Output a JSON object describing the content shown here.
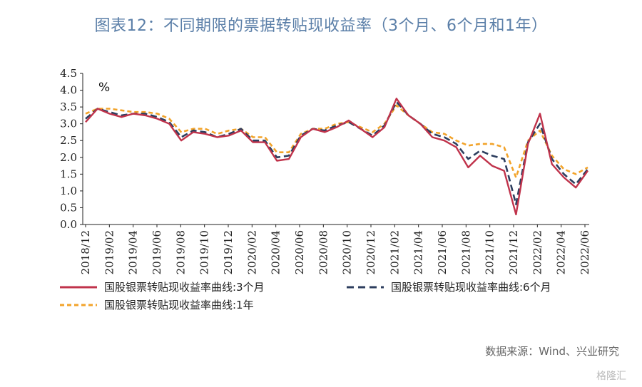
{
  "title": "图表12：不同期限的票据转贴现收益率（3个月、6个月和1年）",
  "source": "数据来源：Wind、兴业研究",
  "watermark": "格隆汇",
  "chart_data": {
    "type": "line",
    "title": "图表12：不同期限的票据转贴现收益率（3个月、6个月和1年）",
    "ylabel": "%",
    "ylim": [
      0,
      4.5
    ],
    "yticks": [
      0.0,
      0.5,
      1.0,
      1.5,
      2.0,
      2.5,
      3.0,
      3.5,
      4.0,
      4.5
    ],
    "ytick_labels": [
      "0.0",
      "0.5",
      "1.0",
      "1.5",
      "2.0",
      "2.5",
      "3.0",
      "3.5",
      "4.0",
      "4.5"
    ],
    "xtick_labels": [
      "2018/12",
      "2019/02",
      "2019/04",
      "2019/06",
      "2019/08",
      "2019/10",
      "2019/12",
      "2020/02",
      "2020/04",
      "2020/06",
      "2020/08",
      "2020/10",
      "2020/12",
      "2021/02",
      "2021/04",
      "2021/06",
      "2021/08",
      "2021/10",
      "2021/12",
      "2022/02",
      "2022/04",
      "2022/06"
    ],
    "x": [
      "2018/12",
      "2019/01",
      "2019/02",
      "2019/03",
      "2019/04",
      "2019/05",
      "2019/06",
      "2019/07",
      "2019/08",
      "2019/09",
      "2019/10",
      "2019/11",
      "2019/12",
      "2020/01",
      "2020/02",
      "2020/03",
      "2020/04",
      "2020/05",
      "2020/06",
      "2020/07",
      "2020/08",
      "2020/09",
      "2020/10",
      "2020/11",
      "2020/12",
      "2021/01",
      "2021/02",
      "2021/03",
      "2021/04",
      "2021/05",
      "2021/06",
      "2021/07",
      "2021/08",
      "2021/09",
      "2021/10",
      "2021/11",
      "2021/12",
      "2022/01",
      "2022/02",
      "2022/03",
      "2022/04",
      "2022/05",
      "2022/06"
    ],
    "grid": false,
    "legend_position": "bottom",
    "series": [
      {
        "name": "国股银票转贴现收益率曲线:3个月",
        "color": "#c0334b",
        "style": "solid",
        "values": [
          3.05,
          3.45,
          3.3,
          3.2,
          3.3,
          3.25,
          3.15,
          3.0,
          2.5,
          2.75,
          2.7,
          2.6,
          2.65,
          2.8,
          2.45,
          2.45,
          1.9,
          1.95,
          2.6,
          2.85,
          2.75,
          2.9,
          3.1,
          2.85,
          2.6,
          2.9,
          3.75,
          3.25,
          3.0,
          2.6,
          2.5,
          2.3,
          1.7,
          2.05,
          1.75,
          1.6,
          0.3,
          2.4,
          3.3,
          1.8,
          1.4,
          1.1,
          1.6
        ]
      },
      {
        "name": "国股银票转贴现收益率曲线:6个月",
        "color": "#2d3e5e",
        "style": "dashed",
        "values": [
          3.15,
          3.45,
          3.35,
          3.25,
          3.3,
          3.3,
          3.2,
          3.05,
          2.6,
          2.8,
          2.75,
          2.6,
          2.7,
          2.85,
          2.5,
          2.5,
          2.0,
          2.05,
          2.65,
          2.85,
          2.8,
          2.95,
          3.05,
          2.85,
          2.65,
          2.95,
          3.65,
          3.25,
          3.0,
          2.7,
          2.6,
          2.4,
          1.95,
          2.2,
          2.05,
          1.95,
          0.6,
          2.45,
          3.0,
          1.95,
          1.5,
          1.2,
          1.65
        ]
      },
      {
        "name": "国股银票转贴现收益率曲线:1年",
        "color": "#f2a32a",
        "style": "dashed",
        "values": [
          3.3,
          3.45,
          3.45,
          3.4,
          3.35,
          3.35,
          3.3,
          3.15,
          2.75,
          2.85,
          2.85,
          2.7,
          2.8,
          2.85,
          2.6,
          2.6,
          2.15,
          2.15,
          2.7,
          2.85,
          2.85,
          3.0,
          3.05,
          2.9,
          2.75,
          3.0,
          3.55,
          3.25,
          3.0,
          2.75,
          2.7,
          2.5,
          2.35,
          2.4,
          2.4,
          2.3,
          1.4,
          2.5,
          2.8,
          2.05,
          1.65,
          1.5,
          1.7
        ]
      }
    ]
  }
}
